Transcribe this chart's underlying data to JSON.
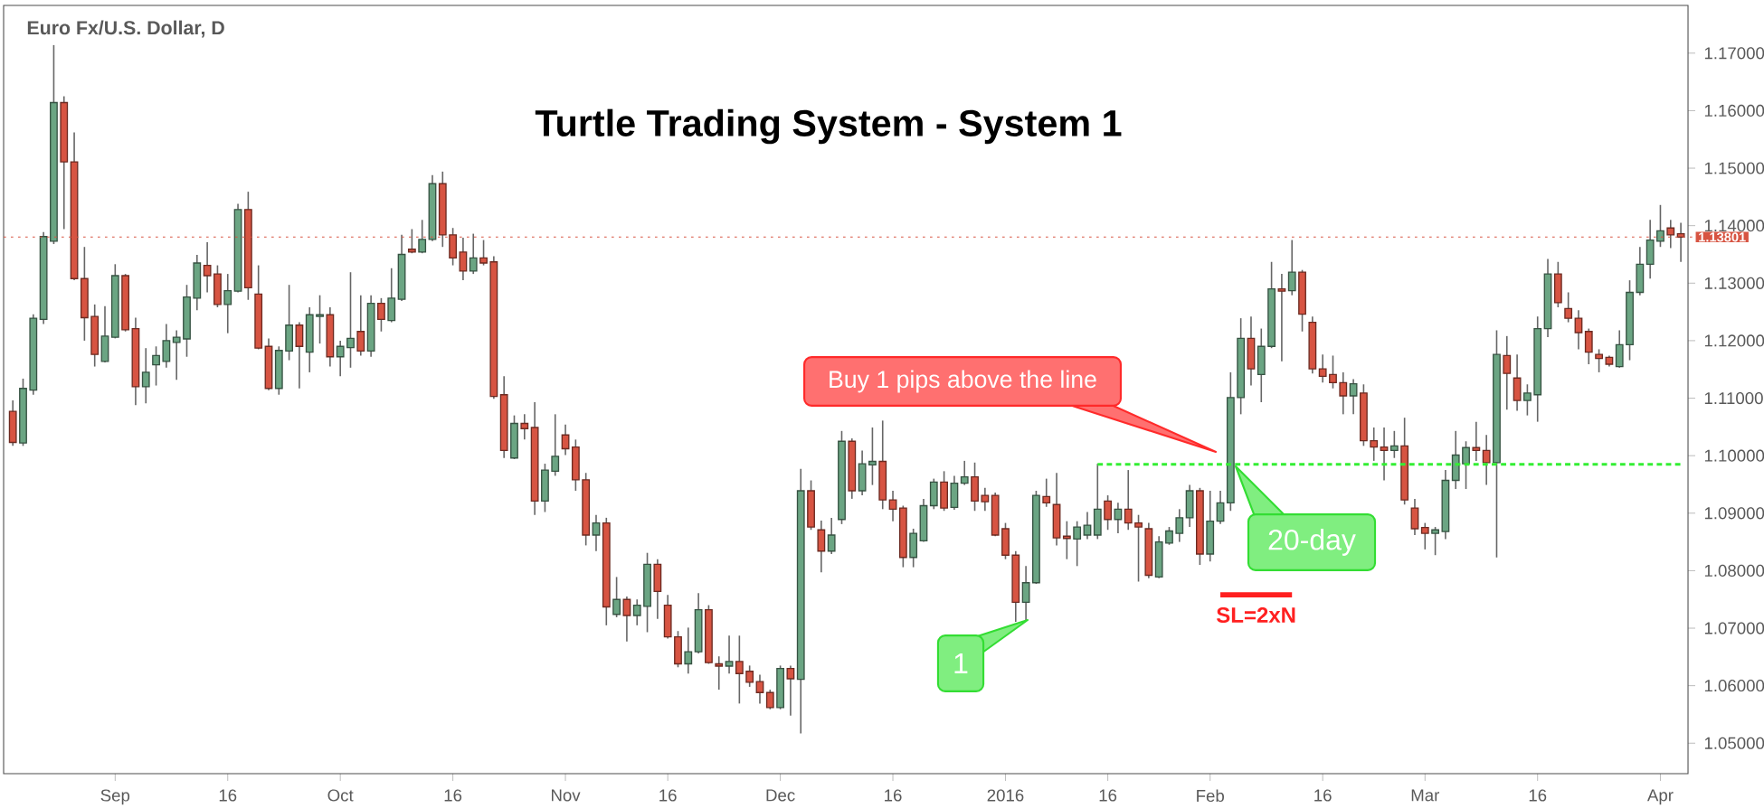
{
  "chart_data": {
    "type": "candlestick",
    "title": "Turtle Trading System - System 1",
    "subtitle": "Euro Fx/U.S. Dollar, D",
    "annotations": [
      "Buy 1 pips above the line",
      "20-day",
      "1"
    ],
    "categories": [
      null,
      null,
      null,
      null,
      null,
      null,
      null,
      null,
      null,
      null,
      "Sep",
      null,
      null,
      null,
      null,
      null,
      null,
      null,
      null,
      null,
      null,
      "16",
      null,
      null,
      null,
      null,
      null,
      null,
      null,
      null,
      null,
      null,
      "Oct",
      null,
      null,
      null,
      null,
      null,
      null,
      null,
      null,
      null,
      null,
      "16",
      null,
      null,
      null,
      null,
      null,
      null,
      null,
      null,
      null,
      null,
      "Nov",
      null,
      null,
      null,
      null,
      null,
      null,
      null,
      null,
      null,
      "16",
      null,
      null,
      null,
      null,
      null,
      null,
      null,
      null,
      null,
      null,
      "Dec",
      null,
      null,
      null,
      null,
      null,
      null,
      null,
      null,
      null,
      null,
      "16",
      null,
      null,
      null,
      null,
      null,
      null,
      null,
      null,
      null,
      null,
      "2016",
      null,
      null,
      null,
      null,
      null,
      null,
      null,
      null,
      null,
      "16",
      null,
      null,
      null,
      null,
      null,
      null,
      null,
      null,
      null,
      "Feb",
      null,
      null,
      null,
      null,
      null,
      null,
      null,
      null,
      null,
      null,
      "16",
      null,
      null,
      null,
      null,
      null,
      null,
      null,
      null,
      null,
      "Mar",
      null,
      null,
      null,
      null,
      null,
      null,
      null,
      null,
      null,
      null,
      "16",
      null,
      null,
      null,
      null,
      null,
      null,
      null,
      null,
      null,
      null,
      null,
      "Apr",
      null,
      null
    ],
    "ohlc": [
      [
        1.1077,
        1.1096,
        1.1017,
        1.1023
      ],
      [
        1.1022,
        1.1134,
        1.1017,
        1.1117
      ],
      [
        1.1114,
        1.1246,
        1.1106,
        1.1239
      ],
      [
        1.1237,
        1.1389,
        1.1229,
        1.1381
      ],
      [
        1.1373,
        1.1714,
        1.1368,
        1.1614
      ],
      [
        1.1614,
        1.1625,
        1.1394,
        1.1511
      ],
      [
        1.1511,
        1.1562,
        1.1305,
        1.1308
      ],
      [
        1.1308,
        1.1363,
        1.12,
        1.124
      ],
      [
        1.1242,
        1.1263,
        1.1155,
        1.1176
      ],
      [
        1.1164,
        1.126,
        1.1162,
        1.1208
      ],
      [
        1.1206,
        1.1333,
        1.1204,
        1.1313
      ],
      [
        1.1313,
        1.1316,
        1.1216,
        1.1219
      ],
      [
        1.1221,
        1.124,
        1.1088,
        1.112
      ],
      [
        1.112,
        1.1187,
        1.1091,
        1.1145
      ],
      [
        1.1158,
        1.119,
        1.1122,
        1.1174
      ],
      [
        1.1164,
        1.1229,
        1.1153,
        1.12
      ],
      [
        1.1197,
        1.1218,
        1.1132,
        1.1206
      ],
      [
        1.1203,
        1.1297,
        1.1172,
        1.1276
      ],
      [
        1.1274,
        1.1349,
        1.1253,
        1.1335
      ],
      [
        1.1331,
        1.1371,
        1.1284,
        1.1313
      ],
      [
        1.1316,
        1.1331,
        1.1258,
        1.1263
      ],
      [
        1.1263,
        1.1316,
        1.1213,
        1.1287
      ],
      [
        1.1286,
        1.1438,
        1.1284,
        1.1428
      ],
      [
        1.1428,
        1.1459,
        1.1271,
        1.1292
      ],
      [
        1.1281,
        1.1331,
        1.1185,
        1.1187
      ],
      [
        1.119,
        1.1204,
        1.1114,
        1.1117
      ],
      [
        1.1117,
        1.119,
        1.1106,
        1.1183
      ],
      [
        1.1182,
        1.1297,
        1.1166,
        1.1227
      ],
      [
        1.1227,
        1.1232,
        1.1117,
        1.119
      ],
      [
        1.118,
        1.1258,
        1.1145,
        1.1245
      ],
      [
        1.1242,
        1.1279,
        1.1195,
        1.1245
      ],
      [
        1.1245,
        1.1258,
        1.1155,
        1.1172
      ],
      [
        1.1172,
        1.12,
        1.1138,
        1.119
      ],
      [
        1.1188,
        1.1319,
        1.1153,
        1.1204
      ],
      [
        1.1216,
        1.1279,
        1.1174,
        1.1182
      ],
      [
        1.1182,
        1.1279,
        1.1172,
        1.1265
      ],
      [
        1.1265,
        1.1274,
        1.1216,
        1.1237
      ],
      [
        1.1235,
        1.1326,
        1.1232,
        1.1274
      ],
      [
        1.1272,
        1.1384,
        1.1269,
        1.135
      ],
      [
        1.1359,
        1.1394,
        1.1352,
        1.1354
      ],
      [
        1.1354,
        1.141,
        1.1352,
        1.1376
      ],
      [
        1.1376,
        1.1488,
        1.1373,
        1.1473
      ],
      [
        1.1473,
        1.1494,
        1.1363,
        1.1384
      ],
      [
        1.1384,
        1.1396,
        1.1331,
        1.1344
      ],
      [
        1.1354,
        1.1379,
        1.1305,
        1.1321
      ],
      [
        1.1321,
        1.1386,
        1.1316,
        1.1344
      ],
      [
        1.1344,
        1.1375,
        1.1331,
        1.1335
      ],
      [
        1.1337,
        1.1347,
        1.1099,
        1.1103
      ],
      [
        1.1106,
        1.1138,
        1.0996,
        1.1009
      ],
      [
        1.0996,
        1.107,
        1.0994,
        1.1056
      ],
      [
        1.1056,
        1.1072,
        1.1028,
        1.1047
      ],
      [
        1.1049,
        1.1093,
        1.0897,
        1.0921
      ],
      [
        1.0921,
        1.0986,
        1.0902,
        1.0975
      ],
      [
        1.0973,
        1.1072,
        1.0965,
        1.0999
      ],
      [
        1.1036,
        1.1054,
        1.1001,
        1.1012
      ],
      [
        1.1015,
        1.1028,
        1.0939,
        1.0958
      ],
      [
        1.0958,
        1.097,
        1.0844,
        1.0862
      ],
      [
        1.0862,
        1.0897,
        1.0834,
        1.0883
      ],
      [
        1.0883,
        1.0892,
        1.0705,
        1.0737
      ],
      [
        1.0724,
        1.0789,
        1.0719,
        1.075
      ],
      [
        1.075,
        1.0755,
        1.0677,
        1.0722
      ],
      [
        1.0722,
        1.075,
        1.0705,
        1.074
      ],
      [
        1.0738,
        1.0831,
        1.0693,
        1.0811
      ],
      [
        1.0811,
        1.082,
        1.0716,
        1.0764
      ],
      [
        1.074,
        1.0758,
        1.0682,
        1.0685
      ],
      [
        1.0685,
        1.0695,
        1.0632,
        1.0638
      ],
      [
        1.0638,
        1.0701,
        1.0621,
        1.0659
      ],
      [
        1.0659,
        1.0761,
        1.0656,
        1.0732
      ],
      [
        1.0732,
        1.074,
        1.0638,
        1.064
      ],
      [
        1.0638,
        1.0651,
        1.0593,
        1.0634
      ],
      [
        1.0634,
        1.0687,
        1.0621,
        1.0642
      ],
      [
        1.0642,
        1.0687,
        1.0569,
        1.0621
      ],
      [
        1.0625,
        1.0635,
        1.0598,
        1.0606
      ],
      [
        1.0607,
        1.0619,
        1.0569,
        1.0588
      ],
      [
        1.0588,
        1.0593,
        1.0559,
        1.0562
      ],
      [
        1.0562,
        1.0635,
        1.0559,
        1.063
      ],
      [
        1.063,
        1.0635,
        1.0548,
        1.0612
      ],
      [
        1.0611,
        1.0977,
        1.0517,
        1.0939
      ],
      [
        1.0939,
        1.0957,
        1.0871,
        1.0876
      ],
      [
        1.0871,
        1.0887,
        1.0797,
        1.0834
      ],
      [
        1.0834,
        1.0892,
        1.0829,
        1.0862
      ],
      [
        1.0889,
        1.1043,
        1.0881,
        1.1025
      ],
      [
        1.1025,
        1.103,
        1.0925,
        1.0939
      ],
      [
        1.0939,
        1.1009,
        1.0931,
        1.0986
      ],
      [
        1.0984,
        1.1049,
        1.0949,
        1.099
      ],
      [
        1.099,
        1.1061,
        1.0907,
        1.0923
      ],
      [
        1.0923,
        1.0939,
        1.0886,
        1.0907
      ],
      [
        1.0909,
        1.0913,
        1.0806,
        1.0823
      ],
      [
        1.0823,
        1.0873,
        1.0806,
        1.0865
      ],
      [
        1.0852,
        1.0925,
        1.085,
        1.0913
      ],
      [
        1.0913,
        1.096,
        1.0907,
        1.0954
      ],
      [
        1.0954,
        1.0973,
        1.0904,
        1.0909
      ],
      [
        1.091,
        1.0965,
        1.0906,
        1.0952
      ],
      [
        1.0952,
        1.0991,
        1.0949,
        1.0963
      ],
      [
        1.0963,
        1.0988,
        1.0904,
        1.0921
      ],
      [
        1.0931,
        1.0944,
        1.0904,
        1.092
      ],
      [
        1.0931,
        1.0936,
        1.086,
        1.0862
      ],
      [
        1.0873,
        1.0883,
        1.082,
        1.0827
      ],
      [
        1.0827,
        1.0834,
        1.0711,
        1.0745
      ],
      [
        1.0745,
        1.0808,
        1.0711,
        1.0779
      ],
      [
        1.0779,
        1.0939,
        1.0777,
        1.0931
      ],
      [
        1.0929,
        1.096,
        1.0911,
        1.0918
      ],
      [
        1.0915,
        1.097,
        1.0844,
        1.0857
      ],
      [
        1.086,
        1.0886,
        1.082,
        1.0856
      ],
      [
        1.0855,
        1.0886,
        1.0808,
        1.0876
      ],
      [
        1.0862,
        1.0902,
        1.0855,
        1.0879
      ],
      [
        1.0862,
        1.0986,
        1.0855,
        1.0907
      ],
      [
        1.0921,
        1.0931,
        1.0871,
        1.0889
      ],
      [
        1.0889,
        1.0918,
        1.0865,
        1.0907
      ],
      [
        1.0907,
        1.0975,
        1.0871,
        1.0883
      ],
      [
        1.0883,
        1.0897,
        1.0781,
        1.0876
      ],
      [
        1.0873,
        1.0883,
        1.0787,
        1.0792
      ],
      [
        1.0789,
        1.086,
        1.0787,
        1.085
      ],
      [
        1.0848,
        1.0876,
        1.0845,
        1.0869
      ],
      [
        1.0865,
        1.0907,
        1.085,
        1.0892
      ],
      [
        1.0892,
        1.0949,
        1.0876,
        1.0939
      ],
      [
        1.0939,
        1.0944,
        1.081,
        1.0829
      ],
      [
        1.0829,
        1.0939,
        1.0816,
        1.0886
      ],
      [
        1.0886,
        1.0939,
        1.0881,
        1.0918
      ],
      [
        1.0918,
        1.1145,
        1.0904,
        1.1101
      ],
      [
        1.1101,
        1.1239,
        1.1072,
        1.1204
      ],
      [
        1.1204,
        1.1242,
        1.1122,
        1.1151
      ],
      [
        1.1141,
        1.1221,
        1.1093,
        1.119
      ],
      [
        1.119,
        1.1337,
        1.1187,
        1.129
      ],
      [
        1.129,
        1.1316,
        1.1164,
        1.1286
      ],
      [
        1.1287,
        1.1375,
        1.1279,
        1.1319
      ],
      [
        1.1319,
        1.1323,
        1.1216,
        1.1246
      ],
      [
        1.1232,
        1.1242,
        1.1143,
        1.1151
      ],
      [
        1.1151,
        1.1176,
        1.1127,
        1.1138
      ],
      [
        1.1141,
        1.1174,
        1.1117,
        1.1127
      ],
      [
        1.1127,
        1.1145,
        1.1072,
        1.1104
      ],
      [
        1.1104,
        1.1133,
        1.1072,
        1.1125
      ],
      [
        1.1109,
        1.1124,
        1.1017,
        1.1026
      ],
      [
        1.1026,
        1.1049,
        1.0991,
        1.1015
      ],
      [
        1.1015,
        1.1049,
        1.0957,
        1.1009
      ],
      [
        1.1009,
        1.1043,
        1.0996,
        1.1017
      ],
      [
        1.1017,
        1.1066,
        1.0915,
        1.0923
      ],
      [
        1.0909,
        1.0925,
        1.0862,
        1.0873
      ],
      [
        1.0875,
        1.0883,
        1.0837,
        1.0865
      ],
      [
        1.0865,
        1.0876,
        1.0827,
        1.0871
      ],
      [
        1.0868,
        1.0975,
        1.0855,
        1.0957
      ],
      [
        1.0957,
        1.1043,
        1.0942,
        1.1001
      ],
      [
        1.0986,
        1.1025,
        1.0942,
        1.1014
      ],
      [
        1.1014,
        1.1059,
        1.0991,
        1.1009
      ],
      [
        1.1009,
        1.1036,
        1.0949,
        1.0988
      ],
      [
        1.0988,
        1.1218,
        1.0823,
        1.1176
      ],
      [
        1.1174,
        1.1208,
        1.108,
        1.1143
      ],
      [
        1.1135,
        1.1176,
        1.1078,
        1.1096
      ],
      [
        1.1096,
        1.1124,
        1.107,
        1.1109
      ],
      [
        1.1106,
        1.1242,
        1.1059,
        1.1221
      ],
      [
        1.1221,
        1.1342,
        1.1206,
        1.1316
      ],
      [
        1.1316,
        1.1337,
        1.1258,
        1.1266
      ],
      [
        1.1256,
        1.1284,
        1.1232,
        1.1239
      ],
      [
        1.1239,
        1.1253,
        1.1185,
        1.1214
      ],
      [
        1.1216,
        1.1221,
        1.1159,
        1.118
      ],
      [
        1.1176,
        1.1185,
        1.1145,
        1.1169
      ],
      [
        1.1171,
        1.1174,
        1.1155,
        1.1159
      ],
      [
        1.1155,
        1.1218,
        1.1153,
        1.1193
      ],
      [
        1.1193,
        1.1305,
        1.1166,
        1.1284
      ],
      [
        1.1284,
        1.1363,
        1.1279,
        1.1333
      ],
      [
        1.1333,
        1.141,
        1.1308,
        1.1375
      ],
      [
        1.1373,
        1.1436,
        1.1363,
        1.1391
      ],
      [
        1.1396,
        1.141,
        1.1361,
        1.1384
      ],
      [
        1.1386,
        1.1405,
        1.1337,
        1.138
      ]
    ],
    "series": [
      {
        "type": "line",
        "color": "#33ee33",
        "line_style": "dashed",
        "values": [
          null,
          null,
          null,
          null,
          null,
          null,
          null,
          null,
          null,
          null,
          null,
          null,
          null,
          null,
          null,
          null,
          null,
          null,
          null,
          null,
          null,
          null,
          null,
          null,
          null,
          null,
          null,
          null,
          null,
          null,
          null,
          null,
          null,
          null,
          null,
          null,
          null,
          null,
          null,
          null,
          null,
          null,
          null,
          null,
          null,
          null,
          null,
          null,
          null,
          null,
          null,
          null,
          null,
          null,
          null,
          null,
          null,
          null,
          null,
          null,
          null,
          null,
          null,
          null,
          null,
          null,
          null,
          null,
          null,
          null,
          null,
          null,
          null,
          null,
          null,
          null,
          null,
          null,
          null,
          null,
          null,
          null,
          null,
          null,
          null,
          null,
          null,
          null,
          null,
          null,
          null,
          null,
          null,
          null,
          null,
          null,
          null,
          null,
          null,
          null,
          null,
          null,
          null,
          null,
          null,
          null,
          1.0985,
          null,
          null,
          null,
          null,
          null,
          null,
          null,
          null,
          null,
          null,
          null,
          null,
          null,
          null,
          null,
          null,
          null,
          null,
          null,
          null,
          null,
          null,
          null,
          null,
          null,
          null,
          null,
          null,
          null,
          null,
          null,
          null,
          null,
          null,
          null,
          null,
          null,
          null,
          null,
          null,
          null,
          null,
          null,
          null,
          null,
          null,
          null,
          null,
          null,
          null,
          null,
          null,
          null,
          null,
          null,
          null,
          1.0985
        ]
      },
      {
        "type": "line",
        "name": "SL=2xN",
        "color": "#ff2020",
        "line_style": "solid",
        "values": [
          null,
          null,
          null,
          null,
          null,
          null,
          null,
          null,
          null,
          null,
          null,
          null,
          null,
          null,
          null,
          null,
          null,
          null,
          null,
          null,
          null,
          null,
          null,
          null,
          null,
          null,
          null,
          null,
          null,
          null,
          null,
          null,
          null,
          null,
          null,
          null,
          null,
          null,
          null,
          null,
          null,
          null,
          null,
          null,
          null,
          null,
          null,
          null,
          null,
          null,
          null,
          null,
          null,
          null,
          null,
          null,
          null,
          null,
          null,
          null,
          null,
          null,
          null,
          null,
          null,
          null,
          null,
          null,
          null,
          null,
          null,
          null,
          null,
          null,
          null,
          null,
          null,
          null,
          null,
          null,
          null,
          null,
          null,
          null,
          null,
          null,
          null,
          null,
          null,
          null,
          null,
          null,
          null,
          null,
          null,
          null,
          null,
          null,
          null,
          null,
          null,
          null,
          null,
          null,
          null,
          null,
          null,
          null,
          null,
          null,
          null,
          null,
          null,
          null,
          null,
          null,
          null,
          null,
          1.0758,
          null,
          null,
          null,
          null,
          null,
          null,
          1.0758,
          null,
          null,
          null,
          null,
          null,
          null,
          null,
          null,
          null,
          null,
          null,
          null,
          null,
          null,
          null,
          null,
          null,
          null,
          null,
          null,
          null,
          null,
          null,
          null,
          null,
          null,
          null,
          null,
          null,
          null,
          null,
          null,
          null,
          null,
          null,
          null,
          null,
          null
        ]
      }
    ],
    "ref_lines": [
      {
        "axis": "y",
        "value": 1.13801,
        "label": "1.13801",
        "color": "#d75442"
      }
    ],
    "ylim": [
      1.0447,
      1.1783
    ],
    "yticks": [
      {
        "value": 1.05,
        "label": "1.05000"
      },
      {
        "value": 1.06,
        "label": "1.06000"
      },
      {
        "value": 1.07,
        "label": "1.07000"
      },
      {
        "value": 1.08,
        "label": "1.08000"
      },
      {
        "value": 1.09,
        "label": "1.09000"
      },
      {
        "value": 1.1,
        "label": "1.10000"
      },
      {
        "value": 1.11,
        "label": "1.11000"
      },
      {
        "value": 1.12,
        "label": "1.12000"
      },
      {
        "value": 1.13,
        "label": "1.13000"
      },
      {
        "value": 1.14,
        "label": "1.14000"
      },
      {
        "value": 1.15,
        "label": "1.15000"
      },
      {
        "value": 1.16,
        "label": "1.16000"
      },
      {
        "value": 1.17,
        "label": "1.17000"
      }
    ]
  }
}
